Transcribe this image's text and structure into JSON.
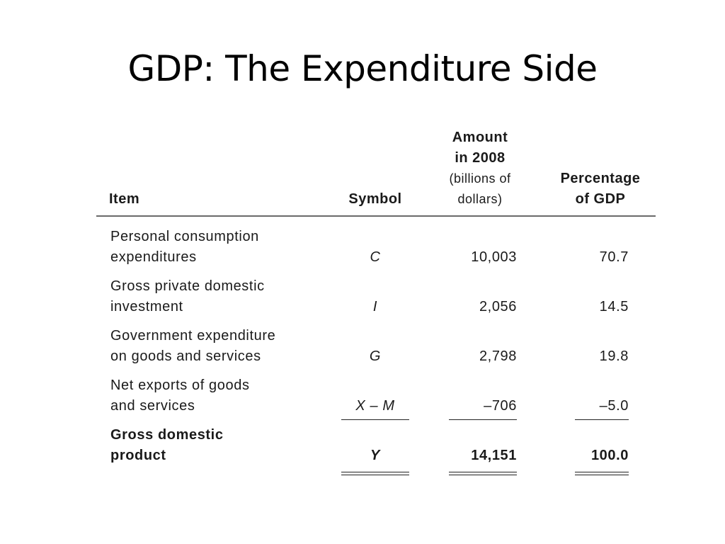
{
  "slide": {
    "title": "GDP: The Expenditure Side"
  },
  "table": {
    "headers": {
      "item": "Item",
      "symbol": "Symbol",
      "amount_line1": "Amount",
      "amount_line2": "in 2008",
      "amount_line3": "(billions of",
      "amount_line4": "dollars)",
      "percentage_line1": "Percentage",
      "percentage_line2": "of GDP"
    },
    "rows": [
      {
        "item_line1": "Personal consumption",
        "item_line2": "expenditures",
        "symbol": "C",
        "amount": "10,003",
        "percentage": "70.7"
      },
      {
        "item_line1": "Gross private domestic",
        "item_line2": "investment",
        "symbol": "I",
        "amount": "2,056",
        "percentage": "14.5"
      },
      {
        "item_line1": "Government expenditure",
        "item_line2": "on goods and services",
        "symbol": "G",
        "amount": "2,798",
        "percentage": "19.8"
      },
      {
        "item_line1": "Net exports of goods",
        "item_line2": "and services",
        "symbol": "X – M",
        "amount": "–706",
        "percentage": "–5.0"
      }
    ],
    "total": {
      "item_line1": "Gross domestic",
      "item_line2": "product",
      "symbol": "Y",
      "amount": "14,151",
      "percentage": "100.0"
    }
  }
}
